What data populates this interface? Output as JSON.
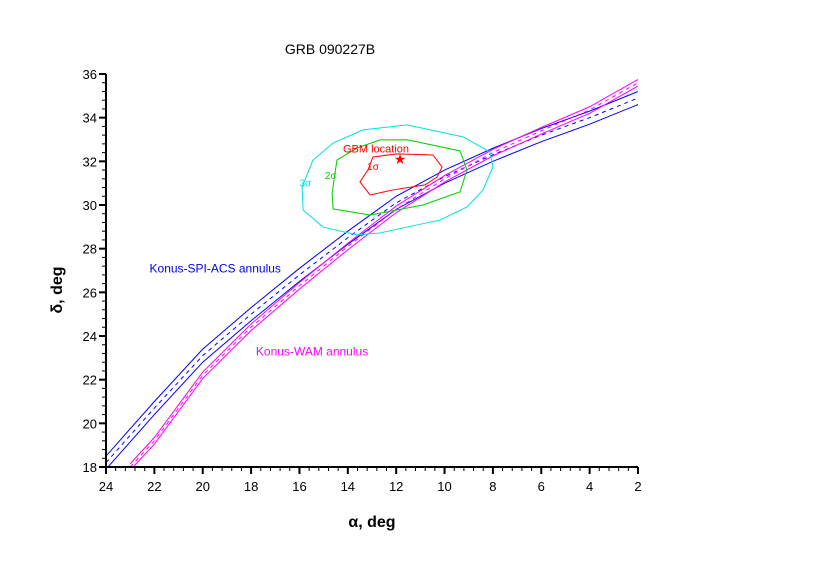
{
  "chart_data": {
    "type": "line",
    "title": "GRB 090227B",
    "xlabel": "α, deg",
    "ylabel": "δ, deg",
    "xlim": [
      24,
      2
    ],
    "ylim": [
      18,
      36
    ],
    "xticks": [
      24,
      22,
      20,
      18,
      16,
      14,
      12,
      10,
      8,
      6,
      4,
      2
    ],
    "yticks": [
      18,
      20,
      22,
      24,
      26,
      28,
      30,
      32,
      34,
      36
    ],
    "grid": false,
    "colors": {
      "konus_spi": "#0000ff",
      "konus_wam": "#ff00ff",
      "sigma1": "#ff0000",
      "sigma2": "#00cc00",
      "sigma3": "#00e0e0"
    },
    "annuli": [
      {
        "name": "Konus-SPI-ACS annulus",
        "color": "#0000ff",
        "half_width": 0.3,
        "center": [
          [
            24,
            18.2
          ],
          [
            22,
            20.7
          ],
          [
            20,
            23.1
          ],
          [
            18,
            25.0
          ],
          [
            16,
            26.8
          ],
          [
            14,
            28.5
          ],
          [
            12,
            30.1
          ],
          [
            10,
            31.3
          ],
          [
            8,
            32.3
          ],
          [
            6,
            33.2
          ],
          [
            4,
            34.0
          ],
          [
            2,
            34.9
          ]
        ]
      },
      {
        "name": "Konus-WAM annulus",
        "color": "#ff00ff",
        "half_width": 0.15,
        "center": [
          [
            23,
            18.0
          ],
          [
            22,
            19.2
          ],
          [
            20,
            22.2
          ],
          [
            18,
            24.4
          ],
          [
            16,
            26.3
          ],
          [
            14,
            28.1
          ],
          [
            12,
            29.8
          ],
          [
            10,
            31.2
          ],
          [
            8,
            32.4
          ],
          [
            6,
            33.4
          ],
          [
            4,
            34.35
          ],
          [
            2,
            35.6
          ]
        ]
      }
    ],
    "contours": [
      {
        "label": "1σ",
        "color": "#ff0000",
        "points": [
          [
            12.96,
            32.2
          ],
          [
            11.97,
            32.34
          ],
          [
            10.48,
            32.29
          ],
          [
            10.1,
            31.74
          ],
          [
            10.31,
            31.28
          ],
          [
            10.81,
            30.92
          ],
          [
            12.13,
            30.69
          ],
          [
            13.08,
            30.46
          ],
          [
            13.5,
            31.06
          ],
          [
            13.17,
            31.6
          ]
        ],
        "label_pos": [
          13.2,
          31.6
        ]
      },
      {
        "label": "2σ",
        "color": "#00cc00",
        "points": [
          [
            11.55,
            32.99
          ],
          [
            9.36,
            32.48
          ],
          [
            9.07,
            31.6
          ],
          [
            9.36,
            30.6
          ],
          [
            10.89,
            30.0
          ],
          [
            13.08,
            29.54
          ],
          [
            14.61,
            29.82
          ],
          [
            14.65,
            30.55
          ],
          [
            14.45,
            32.06
          ],
          [
            13.62,
            32.61
          ],
          [
            12.67,
            32.98
          ]
        ],
        "label_pos": [
          14.95,
          31.2
        ]
      },
      {
        "label": "3σ",
        "color": "#00e0e0",
        "points": [
          [
            11.55,
            33.67
          ],
          [
            9.24,
            33.12
          ],
          [
            8.12,
            32.43
          ],
          [
            8.0,
            31.74
          ],
          [
            8.41,
            30.69
          ],
          [
            9.07,
            29.91
          ],
          [
            10.19,
            29.31
          ],
          [
            11.55,
            28.99
          ],
          [
            12.67,
            28.72
          ],
          [
            13.62,
            28.63
          ],
          [
            15.03,
            28.99
          ],
          [
            15.85,
            29.77
          ],
          [
            15.89,
            30.83
          ],
          [
            15.44,
            32.06
          ],
          [
            14.61,
            32.84
          ],
          [
            13.37,
            33.44
          ]
        ],
        "label_pos": [
          16.0,
          30.85
        ]
      }
    ],
    "gbm_location": {
      "label": "GBM location",
      "alpha": 11.84,
      "delta": 32.11,
      "label_pos": [
        11.8,
        32.55
      ]
    },
    "annotations": [
      {
        "text": "Konus-SPI-ACS annulus",
        "color": "#0000ff",
        "pos": [
          22.2,
          26.9
        ]
      },
      {
        "text": "Konus-WAM annulus",
        "color": "#ff00ff",
        "pos": [
          17.8,
          23.1
        ]
      }
    ]
  }
}
